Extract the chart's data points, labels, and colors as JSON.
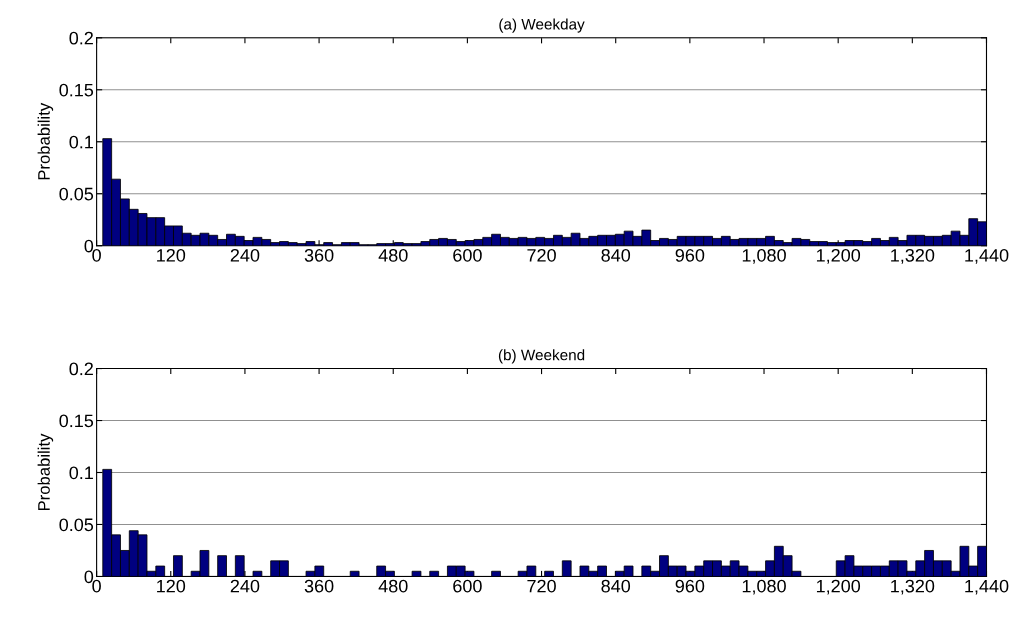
{
  "chart_data": [
    {
      "type": "histogram",
      "title": "(a) Weekday",
      "ylabel": "Probability",
      "color": "#000080",
      "bins": [
        10,
        24.3,
        38.6,
        52.9,
        67.2,
        81.5,
        95.8,
        110.1,
        124.4,
        138.7,
        153,
        167.3,
        181.6,
        195.9,
        210.2,
        224.5,
        238.8,
        253.1,
        267.4,
        281.7,
        296,
        310.3,
        324.6,
        338.9,
        353.2,
        367.5,
        381.8,
        396.1,
        410.4,
        424.7,
        439,
        453.3,
        467.6,
        481.9,
        496.2,
        510.5,
        524.8,
        539.1,
        553.4,
        567.7,
        582,
        596.3,
        610.6,
        624.9,
        639.2,
        653.5,
        667.8,
        682.1,
        696.4,
        710.7,
        725,
        739.3,
        753.6,
        767.9,
        782.2,
        796.5,
        810.8,
        825.1,
        839.4,
        853.7,
        868,
        882.3,
        896.6,
        910.9,
        925.2,
        939.5,
        953.8,
        968.1,
        982.4,
        996.7,
        1011,
        1025.3,
        1039.6,
        1053.9,
        1068.2,
        1082.5,
        1096.8,
        1111.1,
        1125.4,
        1139.7,
        1154,
        1168.3,
        1182.6,
        1196.9,
        1211.2,
        1225.5,
        1239.8,
        1254.1,
        1268.4,
        1282.7,
        1297,
        1311.3,
        1325.6,
        1339.9,
        1354.2,
        1368.5,
        1382.8,
        1397.1,
        1411.4,
        1425.7,
        1440
      ],
      "values": [
        0.103,
        0.064,
        0.045,
        0.035,
        0.031,
        0.027,
        0.027,
        0.019,
        0.019,
        0.012,
        0.01,
        0.012,
        0.01,
        0.006,
        0.011,
        0.009,
        0.005,
        0.008,
        0.006,
        0.003,
        0.004,
        0.003,
        0.002,
        0.004,
        0.001,
        0.003,
        0.001,
        0.003,
        0.003,
        0.001,
        0.001,
        0.002,
        0.002,
        0.003,
        0.002,
        0.002,
        0.004,
        0.006,
        0.007,
        0.006,
        0.004,
        0.005,
        0.006,
        0.008,
        0.011,
        0.008,
        0.007,
        0.008,
        0.007,
        0.008,
        0.007,
        0.01,
        0.008,
        0.012,
        0.007,
        0.009,
        0.01,
        0.01,
        0.011,
        0.014,
        0.009,
        0.015,
        0.005,
        0.007,
        0.006,
        0.009,
        0.009,
        0.009,
        0.009,
        0.007,
        0.009,
        0.006,
        0.007,
        0.007,
        0.007,
        0.009,
        0.005,
        0.003,
        0.007,
        0.006,
        0.004,
        0.004,
        0.003,
        0.003,
        0.005,
        0.005,
        0.004,
        0.007,
        0.005,
        0.008,
        0.005,
        0.01,
        0.01,
        0.009,
        0.009,
        0.01,
        0.014,
        0.01,
        0.026,
        0.023
      ],
      "xlim": [
        0,
        1440
      ],
      "ylim": [
        0,
        0.2
      ],
      "xticks": [
        0,
        120,
        240,
        360,
        480,
        600,
        720,
        840,
        960,
        {
          "value": 1080,
          "label": "1,080"
        },
        {
          "value": 1200,
          "label": "1,200"
        },
        {
          "value": 1320,
          "label": "1,320"
        },
        {
          "value": 1440,
          "label": "1,440"
        }
      ],
      "yticks": [
        0,
        0.05,
        0.1,
        0.15,
        0.2
      ],
      "grid": "y"
    },
    {
      "type": "histogram",
      "title": "(b) Weekend",
      "ylabel": "Probability",
      "color": "#000080",
      "bins": [
        10,
        24.3,
        38.6,
        52.9,
        67.2,
        81.5,
        95.8,
        110.1,
        124.4,
        138.7,
        153,
        167.3,
        181.6,
        195.9,
        210.2,
        224.5,
        238.8,
        253.1,
        267.4,
        281.7,
        296,
        310.3,
        324.6,
        338.9,
        353.2,
        367.5,
        381.8,
        396.1,
        410.4,
        424.7,
        439,
        453.3,
        467.6,
        481.9,
        496.2,
        510.5,
        524.8,
        539.1,
        553.4,
        567.7,
        582,
        596.3,
        610.6,
        624.9,
        639.2,
        653.5,
        667.8,
        682.1,
        696.4,
        710.7,
        725,
        739.3,
        753.6,
        767.9,
        782.2,
        796.5,
        810.8,
        825.1,
        839.4,
        853.7,
        868,
        882.3,
        896.6,
        910.9,
        925.2,
        939.5,
        953.8,
        968.1,
        982.4,
        996.7,
        1011,
        1025.3,
        1039.6,
        1053.9,
        1068.2,
        1082.5,
        1096.8,
        1111.1,
        1125.4,
        1139.7,
        1154,
        1168.3,
        1182.6,
        1196.9,
        1211.2,
        1225.5,
        1239.8,
        1254.1,
        1268.4,
        1282.7,
        1297,
        1311.3,
        1325.6,
        1339.9,
        1354.2,
        1368.5,
        1382.8,
        1397.1,
        1411.4,
        1425.7,
        1440
      ],
      "values": [
        0.103,
        0.04,
        0.025,
        0.044,
        0.04,
        0.005,
        0.01,
        0,
        0.02,
        0,
        0.005,
        0.025,
        0,
        0.02,
        0,
        0.02,
        0,
        0.005,
        0,
        0.015,
        0.015,
        0,
        0,
        0.005,
        0.01,
        0,
        0,
        0,
        0.005,
        0,
        0,
        0.01,
        0.005,
        0,
        0,
        0.005,
        0,
        0.005,
        0,
        0.01,
        0.01,
        0.005,
        0,
        0,
        0.005,
        0,
        0,
        0.005,
        0.01,
        0,
        0.005,
        0,
        0.015,
        0,
        0.01,
        0.005,
        0.01,
        0,
        0.005,
        0.01,
        0,
        0.01,
        0.005,
        0.02,
        0.01,
        0.01,
        0.005,
        0.01,
        0.015,
        0.015,
        0.01,
        0.015,
        0.01,
        0.005,
        0.005,
        0.015,
        0.029,
        0.02,
        0.005,
        0,
        0,
        0,
        0,
        0.015,
        0.02,
        0.01,
        0.01,
        0.01,
        0.01,
        0.015,
        0.015,
        0.005,
        0.015,
        0.025,
        0.015,
        0.015,
        0.005,
        0.029,
        0.01,
        0.029
      ],
      "xlim": [
        0,
        1440
      ],
      "ylim": [
        0,
        0.2
      ],
      "xticks": [
        0,
        120,
        240,
        360,
        480,
        600,
        720,
        840,
        960,
        {
          "value": 1080,
          "label": "1,080"
        },
        {
          "value": 1200,
          "label": "1,200"
        },
        {
          "value": 1320,
          "label": "1,320"
        },
        {
          "value": 1440,
          "label": "1,440"
        }
      ],
      "yticks": [
        0,
        0.05,
        0.1,
        0.15,
        0.2
      ],
      "grid": "y"
    }
  ]
}
